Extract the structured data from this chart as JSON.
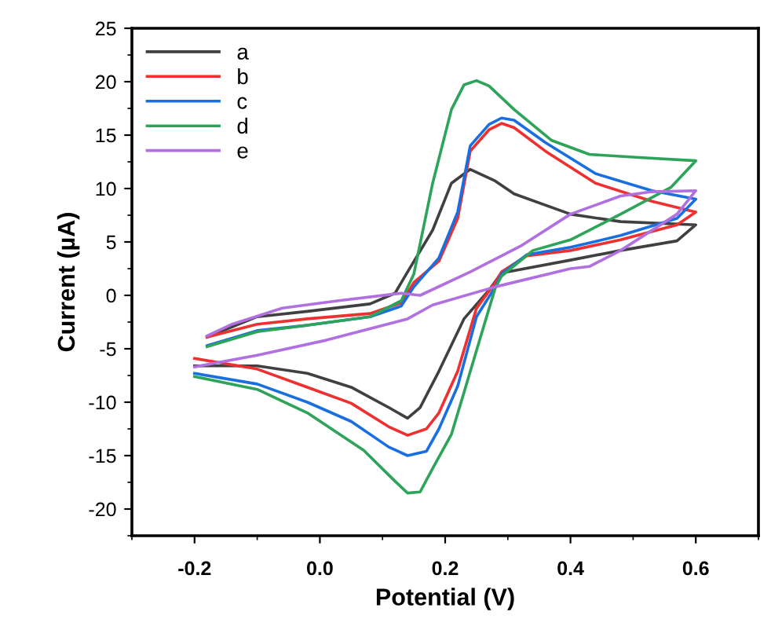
{
  "chart_data": {
    "type": "line",
    "xlabel": "Potential (V)",
    "ylabel": "Current (µA)",
    "xlim": [
      -0.3,
      0.7
    ],
    "xticks": [
      {
        "value": -0.2,
        "label": "-0.2"
      },
      {
        "value": 0.0,
        "label": "0.0"
      },
      {
        "value": 0.2,
        "label": "0.2"
      },
      {
        "value": 0.4,
        "label": "0.4"
      },
      {
        "value": 0.6,
        "label": "0.6"
      }
    ],
    "ylim": [
      -22.5,
      25
    ],
    "yticks": [
      -20,
      -15,
      -10,
      -5,
      0,
      5,
      10,
      15,
      20,
      25
    ],
    "legend": "top left",
    "grid": false,
    "marker": "none",
    "line_style": "solid",
    "series": [
      {
        "name": "a",
        "color": "#404040",
        "x": [
          -0.18,
          -0.1,
          -0.02,
          0.08,
          0.12,
          0.14,
          0.18,
          0.21,
          0.24,
          0.28,
          0.31,
          0.4,
          0.48,
          0.6,
          0.57,
          0.48,
          0.4,
          0.29,
          0.27,
          0.23,
          0.19,
          0.16,
          0.14,
          0.11,
          0.05,
          -0.02,
          -0.1,
          -0.2
        ],
        "values": [
          -3.9,
          -2.0,
          -1.5,
          -0.8,
          0.2,
          2.2,
          6.1,
          10.5,
          11.8,
          10.7,
          9.5,
          7.6,
          6.9,
          6.6,
          5.1,
          4.2,
          3.3,
          2.1,
          0.5,
          -2.2,
          -7.1,
          -10.5,
          -11.5,
          -10.5,
          -8.6,
          -7.3,
          -6.6,
          -6.6
        ]
      },
      {
        "name": "b",
        "color": "#ee3030",
        "x": [
          -0.18,
          -0.1,
          -0.02,
          0.08,
          0.13,
          0.15,
          0.19,
          0.22,
          0.24,
          0.27,
          0.29,
          0.31,
          0.36,
          0.44,
          0.53,
          0.6,
          0.57,
          0.48,
          0.4,
          0.33,
          0.29,
          0.28,
          0.25,
          0.22,
          0.19,
          0.17,
          0.14,
          0.11,
          0.05,
          -0.02,
          -0.1,
          -0.2
        ],
        "values": [
          -3.9,
          -2.7,
          -2.2,
          -1.7,
          -0.7,
          1.2,
          3.2,
          7.2,
          13.5,
          15.5,
          16.1,
          15.7,
          13.5,
          10.5,
          8.8,
          7.8,
          6.6,
          5.2,
          4.2,
          3.7,
          2.2,
          1.2,
          -1.2,
          -7.1,
          -11.0,
          -12.5,
          -13.1,
          -12.3,
          -10.1,
          -8.6,
          -6.9,
          -5.9
        ]
      },
      {
        "name": "c",
        "color": "#1a6fe0",
        "x": [
          -0.18,
          -0.1,
          -0.02,
          0.08,
          0.13,
          0.15,
          0.19,
          0.22,
          0.24,
          0.27,
          0.29,
          0.31,
          0.36,
          0.44,
          0.53,
          0.6,
          0.57,
          0.48,
          0.4,
          0.33,
          0.29,
          0.28,
          0.25,
          0.22,
          0.19,
          0.17,
          0.14,
          0.11,
          0.05,
          -0.02,
          -0.1,
          -0.2
        ],
        "values": [
          -4.7,
          -3.3,
          -2.8,
          -2.0,
          -1.0,
          0.8,
          3.5,
          7.8,
          14.0,
          16.0,
          16.6,
          16.4,
          14.3,
          11.4,
          9.8,
          9.0,
          7.2,
          5.6,
          4.5,
          3.8,
          2.0,
          0.8,
          -2.0,
          -8.5,
          -12.5,
          -14.6,
          -15.0,
          -14.2,
          -11.8,
          -10.0,
          -8.3,
          -7.3
        ]
      },
      {
        "name": "d",
        "color": "#2ea35a",
        "x": [
          -0.18,
          -0.1,
          -0.02,
          0.08,
          0.13,
          0.15,
          0.18,
          0.21,
          0.23,
          0.25,
          0.27,
          0.31,
          0.37,
          0.43,
          0.51,
          0.6,
          0.56,
          0.48,
          0.4,
          0.34,
          0.29,
          0.28,
          0.26,
          0.23,
          0.21,
          0.18,
          0.16,
          0.14,
          0.12,
          0.07,
          -0.02,
          -0.1,
          -0.2
        ],
        "values": [
          -4.8,
          -3.4,
          -2.8,
          -2.0,
          -0.5,
          2.0,
          10.5,
          17.4,
          19.7,
          20.1,
          19.6,
          17.4,
          14.5,
          13.2,
          12.9,
          12.6,
          10.1,
          7.6,
          5.2,
          4.2,
          1.8,
          0.7,
          -3.2,
          -9.1,
          -13.0,
          -16.2,
          -18.4,
          -18.5,
          -17.4,
          -14.5,
          -11.0,
          -8.8,
          -7.6
        ]
      },
      {
        "name": "e",
        "color": "#b070e0",
        "x": [
          -0.18,
          -0.14,
          -0.06,
          0.03,
          0.13,
          0.16,
          0.24,
          0.32,
          0.4,
          0.48,
          0.53,
          0.6,
          0.57,
          0.48,
          0.43,
          0.4,
          0.28,
          0.18,
          0.14,
          0.01,
          -0.1,
          -0.2
        ],
        "values": [
          -3.8,
          -2.7,
          -1.2,
          -0.5,
          0.2,
          0.0,
          2.2,
          4.6,
          7.6,
          9.3,
          9.7,
          9.8,
          7.6,
          4.2,
          2.7,
          2.5,
          0.8,
          -0.9,
          -2.2,
          -4.2,
          -5.6,
          -6.7
        ]
      }
    ]
  }
}
